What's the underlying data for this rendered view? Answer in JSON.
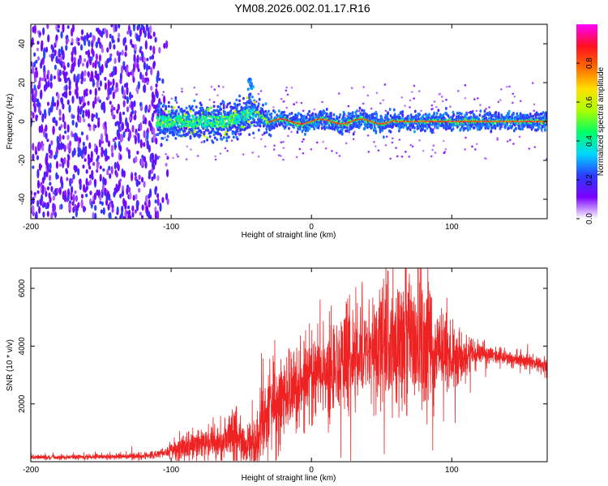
{
  "title": "YM08.2026.002.01.17.R16",
  "chart_data": [
    {
      "type": "heatmap",
      "xlabel": "Height of straight line (km)",
      "ylabel": "Frequency (Hz)",
      "xlim": [
        -200,
        168
      ],
      "ylim": [
        -50,
        50
      ],
      "xticks": [
        -200,
        -100,
        0,
        100
      ],
      "xtick_labels": [
        "-200",
        "-100",
        "0",
        "100"
      ],
      "yticks": [
        40,
        20,
        0,
        -20,
        -40
      ],
      "ytick_labels": [
        "40",
        "20",
        "0",
        "-20",
        "-40"
      ],
      "colorbar": {
        "label": "Normalized spectral amplitude",
        "range": [
          0,
          1
        ],
        "ticks": [
          0,
          0.2,
          0.4,
          0.6,
          0.8
        ],
        "tick_labels": [
          "0.0",
          "0.2",
          "0.4",
          "0.6",
          "0.8"
        ],
        "colors": [
          "#ffffff",
          "#7b00ff",
          "#2b3cff",
          "#00d8ff",
          "#00ff66",
          "#aaff00",
          "#ffe000",
          "#ff6a00",
          "#ff1020",
          "#ff00ff"
        ]
      },
      "features": {
        "noise_region_x": [
          -200,
          -110
        ],
        "scatter_zone_x": [
          -110,
          -40
        ],
        "line_start_x": -40,
        "peak_line_x": [
          -30,
          168
        ],
        "bump_x": -43,
        "bump_freq": 19
      }
    },
    {
      "type": "line",
      "xlabel": "Height of straight line (km)",
      "ylabel": "SNR (10 * v/v)",
      "xlim": [
        -200,
        168
      ],
      "ylim": [
        0,
        6700
      ],
      "xticks": [
        -200,
        -100,
        0,
        100
      ],
      "xtick_labels": [
        "-200",
        "-100",
        "0",
        "100"
      ],
      "yticks": [
        2000,
        4000,
        6000
      ],
      "ytick_labels": [
        "2000",
        "4000",
        "6000"
      ],
      "color": "#ee2222",
      "envelope": {
        "x": [
          -200,
          -150,
          -120,
          -105,
          -95,
          -90,
          -75,
          -60,
          -55,
          -48,
          -40,
          -30,
          -20,
          -10,
          0,
          10,
          20,
          30,
          45,
          60,
          70,
          80,
          90,
          100,
          110,
          120,
          140,
          160,
          168
        ],
        "mid": [
          150,
          170,
          200,
          300,
          450,
          550,
          650,
          700,
          1000,
          500,
          550,
          1800,
          2300,
          2600,
          2900,
          3100,
          3300,
          3800,
          4000,
          4100,
          4200,
          4100,
          3900,
          3700,
          3650,
          3800,
          3600,
          3400,
          3300
        ],
        "amp": [
          70,
          80,
          100,
          150,
          380,
          480,
          450,
          500,
          1100,
          500,
          900,
          1500,
          1400,
          1300,
          1300,
          1300,
          1400,
          1700,
          1800,
          2000,
          2200,
          1900,
          1500,
          1000,
          700,
          300,
          250,
          250,
          250
        ]
      }
    }
  ]
}
